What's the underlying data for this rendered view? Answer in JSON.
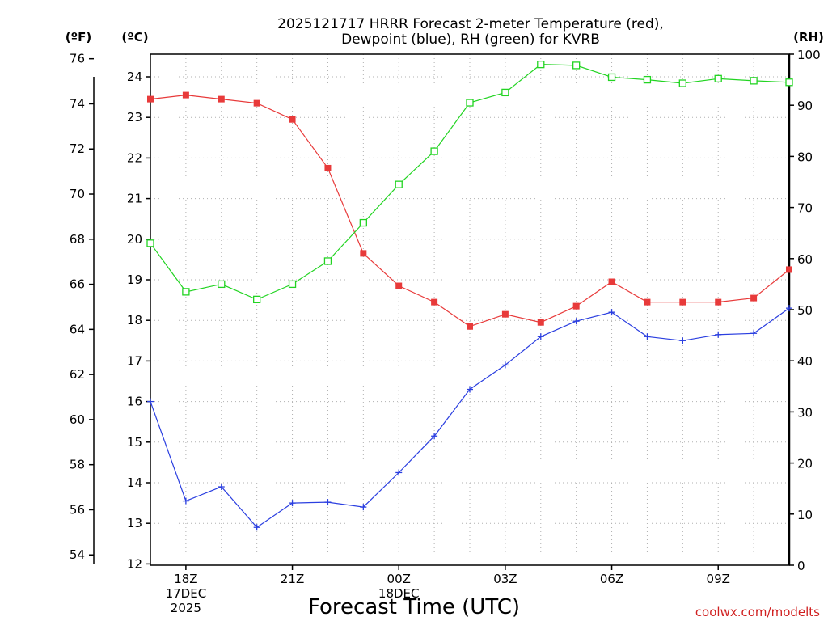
{
  "title_line1": "2025121717 HRRR Forecast 2-meter Temperature (red),",
  "title_line2": "Dewpoint (blue), RH (green) for KVRB",
  "credit": "coolwx.com/modelts",
  "chart_data": {
    "type": "line",
    "title": "2025121717 HRRR Forecast 2-meter Temperature (red), Dewpoint (blue), RH (green) for KVRB",
    "xlabel": "Forecast Time (UTC)",
    "x": [
      17,
      18,
      19,
      20,
      21,
      22,
      23,
      24,
      25,
      26,
      27,
      28,
      29,
      30,
      31,
      32,
      33,
      34,
      35
    ],
    "xlim": [
      17,
      35
    ],
    "x_ticks": [
      {
        "value": 18,
        "lines": [
          "18Z",
          "17DEC",
          "2025"
        ]
      },
      {
        "value": 21,
        "lines": [
          "21Z"
        ]
      },
      {
        "value": 24,
        "lines": [
          "00Z",
          "18DEC"
        ]
      },
      {
        "value": 27,
        "lines": [
          "03Z"
        ]
      },
      {
        "value": 30,
        "lines": [
          "06Z"
        ]
      },
      {
        "value": 33,
        "lines": [
          "09Z"
        ]
      }
    ],
    "left_axis_f": {
      "label": "(ºF)",
      "range": [
        53.6,
        75.2
      ],
      "ticks": [
        54,
        56,
        58,
        60,
        62,
        64,
        66,
        68,
        70,
        72,
        74,
        76
      ]
    },
    "left_axis_c": {
      "label": "(ºC)",
      "range": [
        12,
        24.5
      ],
      "ticks": [
        12,
        13,
        14,
        15,
        16,
        17,
        18,
        19,
        20,
        21,
        22,
        23,
        24
      ]
    },
    "right_axis": {
      "label": "(RH)",
      "range": [
        0,
        100
      ],
      "ticks": [
        0,
        10,
        20,
        30,
        40,
        50,
        60,
        70,
        80,
        90,
        100
      ]
    },
    "series": [
      {
        "name": "Temperature",
        "units": "C",
        "axis": "c",
        "color": "#e83a3a",
        "marker": "filled-square",
        "values": [
          23.45,
          23.55,
          23.45,
          23.35,
          22.95,
          21.75,
          19.65,
          18.85,
          18.45,
          17.85,
          18.15,
          17.95,
          18.35,
          18.95,
          18.45,
          18.45,
          18.45,
          18.55,
          19.25
        ]
      },
      {
        "name": "Dewpoint",
        "units": "C",
        "axis": "c",
        "color": "#2b3fe0",
        "marker": "plus",
        "values": [
          16.0,
          13.55,
          13.9,
          12.9,
          13.5,
          13.52,
          13.4,
          14.25,
          15.15,
          16.3,
          16.9,
          17.6,
          17.98,
          18.2,
          17.6,
          17.5,
          17.65,
          17.68,
          18.3
        ]
      },
      {
        "name": "RH",
        "units": "%",
        "axis": "rh",
        "color": "#22d422",
        "marker": "open-square",
        "values": [
          63,
          53.5,
          55,
          52,
          55,
          59.5,
          67,
          74.5,
          81,
          90.5,
          92.5,
          98,
          97.8,
          95.5,
          95,
          94.3,
          95.2,
          94.8,
          94.5
        ]
      }
    ]
  }
}
